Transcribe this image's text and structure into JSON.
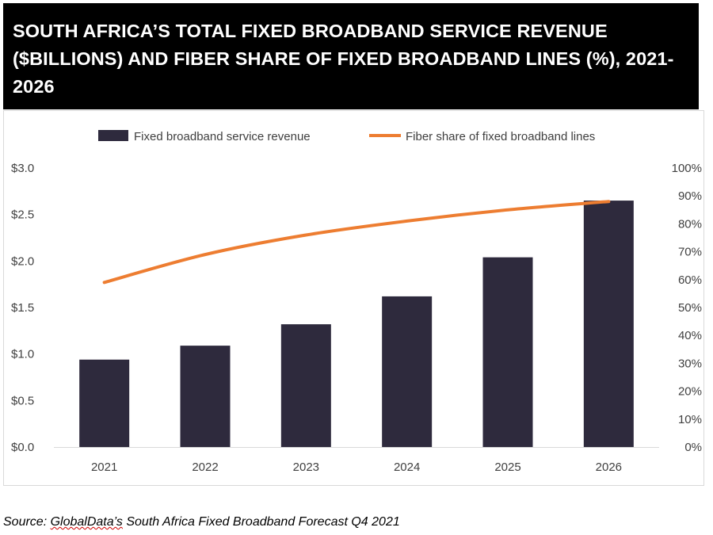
{
  "title": "SOUTH AFRICA’S TOTAL FIXED BROADBAND SERVICE REVENUE ($BILLIONS) AND FIBER SHARE OF FIXED BROADBAND LINES (%), 2021-2026",
  "source": {
    "prefix": "Source: ",
    "company": "GlobalData’s",
    "rest": " South Africa Fixed Broadband Forecast Q4 2021"
  },
  "colors": {
    "bar": "#2e2a3d",
    "line": "#ed7d31",
    "axis_text": "#404040",
    "title_bg": "#000000",
    "title_text": "#ffffff"
  },
  "chart_data": {
    "type": "bar+line",
    "categories": [
      "2021",
      "2022",
      "2023",
      "2024",
      "2025",
      "2026"
    ],
    "series": [
      {
        "name": "Fixed broadband service revenue",
        "type": "bar",
        "axis": "left",
        "values": [
          0.94,
          1.09,
          1.32,
          1.62,
          2.04,
          2.65
        ]
      },
      {
        "name": "Fiber share of fixed broadband lines",
        "type": "line",
        "axis": "right",
        "values": [
          59,
          69,
          76,
          81,
          85,
          88
        ]
      }
    ],
    "y_left": {
      "min": 0,
      "max": 3.0,
      "ticks": [
        "$0.0",
        "$0.5",
        "$1.0",
        "$1.5",
        "$2.0",
        "$2.5",
        "$3.0"
      ]
    },
    "y_right": {
      "min": 0,
      "max": 100,
      "ticks": [
        "0%",
        "10%",
        "20%",
        "30%",
        "40%",
        "50%",
        "60%",
        "70%",
        "80%",
        "90%",
        "100%"
      ]
    },
    "legend": {
      "position": "top"
    },
    "grid": false
  }
}
